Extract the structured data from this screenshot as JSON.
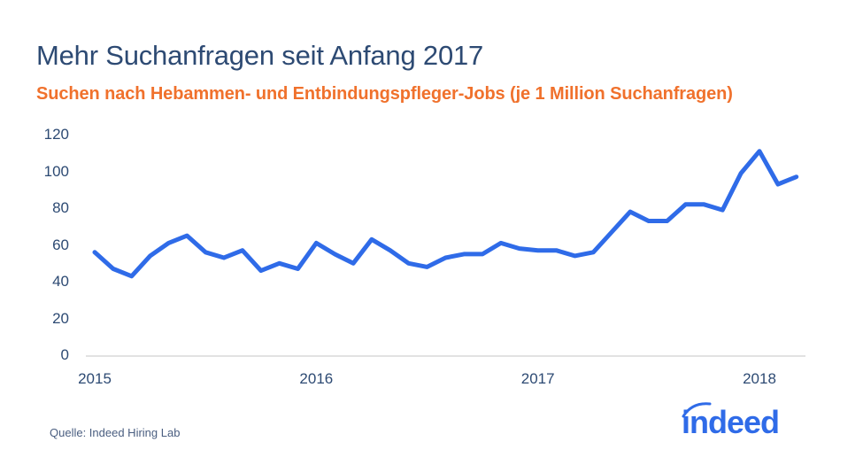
{
  "header": {
    "title": "Mehr Suchanfragen seit Anfang 2017",
    "subtitle": "Suchen nach Hebammen- und Entbindungspfleger-Jobs (je 1 Million Suchanfragen)"
  },
  "footer": {
    "source": "Quelle: Indeed Hiring Lab",
    "logo_text": "indeed"
  },
  "colors": {
    "title": "#2d4a73",
    "subtitle": "#f0712c",
    "line": "#2f6be8",
    "axis": "#e2e2e2",
    "logo": "#2f6be8"
  },
  "chart_data": {
    "type": "line",
    "title": "Mehr Suchanfragen seit Anfang 2017",
    "subtitle": "Suchen nach Hebammen- und Entbindungspfleger-Jobs (je 1 Million Suchanfragen)",
    "xlabel": "",
    "ylabel": "",
    "ylim": [
      0,
      120
    ],
    "yticks": [
      0,
      20,
      40,
      60,
      80,
      100,
      120
    ],
    "xticks": [
      "2015",
      "2016",
      "2017",
      "2018"
    ],
    "grid": false,
    "legend": null,
    "x": [
      "2015-01",
      "2015-02",
      "2015-03",
      "2015-04",
      "2015-05",
      "2015-06",
      "2015-07",
      "2015-08",
      "2015-09",
      "2015-10",
      "2015-11",
      "2015-12",
      "2016-01",
      "2016-02",
      "2016-03",
      "2016-04",
      "2016-05",
      "2016-06",
      "2016-07",
      "2016-08",
      "2016-09",
      "2016-10",
      "2016-11",
      "2016-12",
      "2017-01",
      "2017-02",
      "2017-03",
      "2017-04",
      "2017-05",
      "2017-06",
      "2017-07",
      "2017-08",
      "2017-09",
      "2017-10",
      "2017-11",
      "2017-12",
      "2018-01",
      "2018-02",
      "2018-03"
    ],
    "series": [
      {
        "name": "Suchen nach Hebammen- und Entbindungspfleger-Jobs",
        "values": [
          56,
          47,
          43,
          54,
          61,
          65,
          56,
          53,
          57,
          46,
          50,
          47,
          61,
          55,
          50,
          63,
          57,
          50,
          48,
          53,
          55,
          55,
          61,
          58,
          57,
          57,
          54,
          56,
          67,
          78,
          73,
          73,
          82,
          82,
          79,
          99,
          111,
          93,
          97
        ]
      }
    ]
  }
}
